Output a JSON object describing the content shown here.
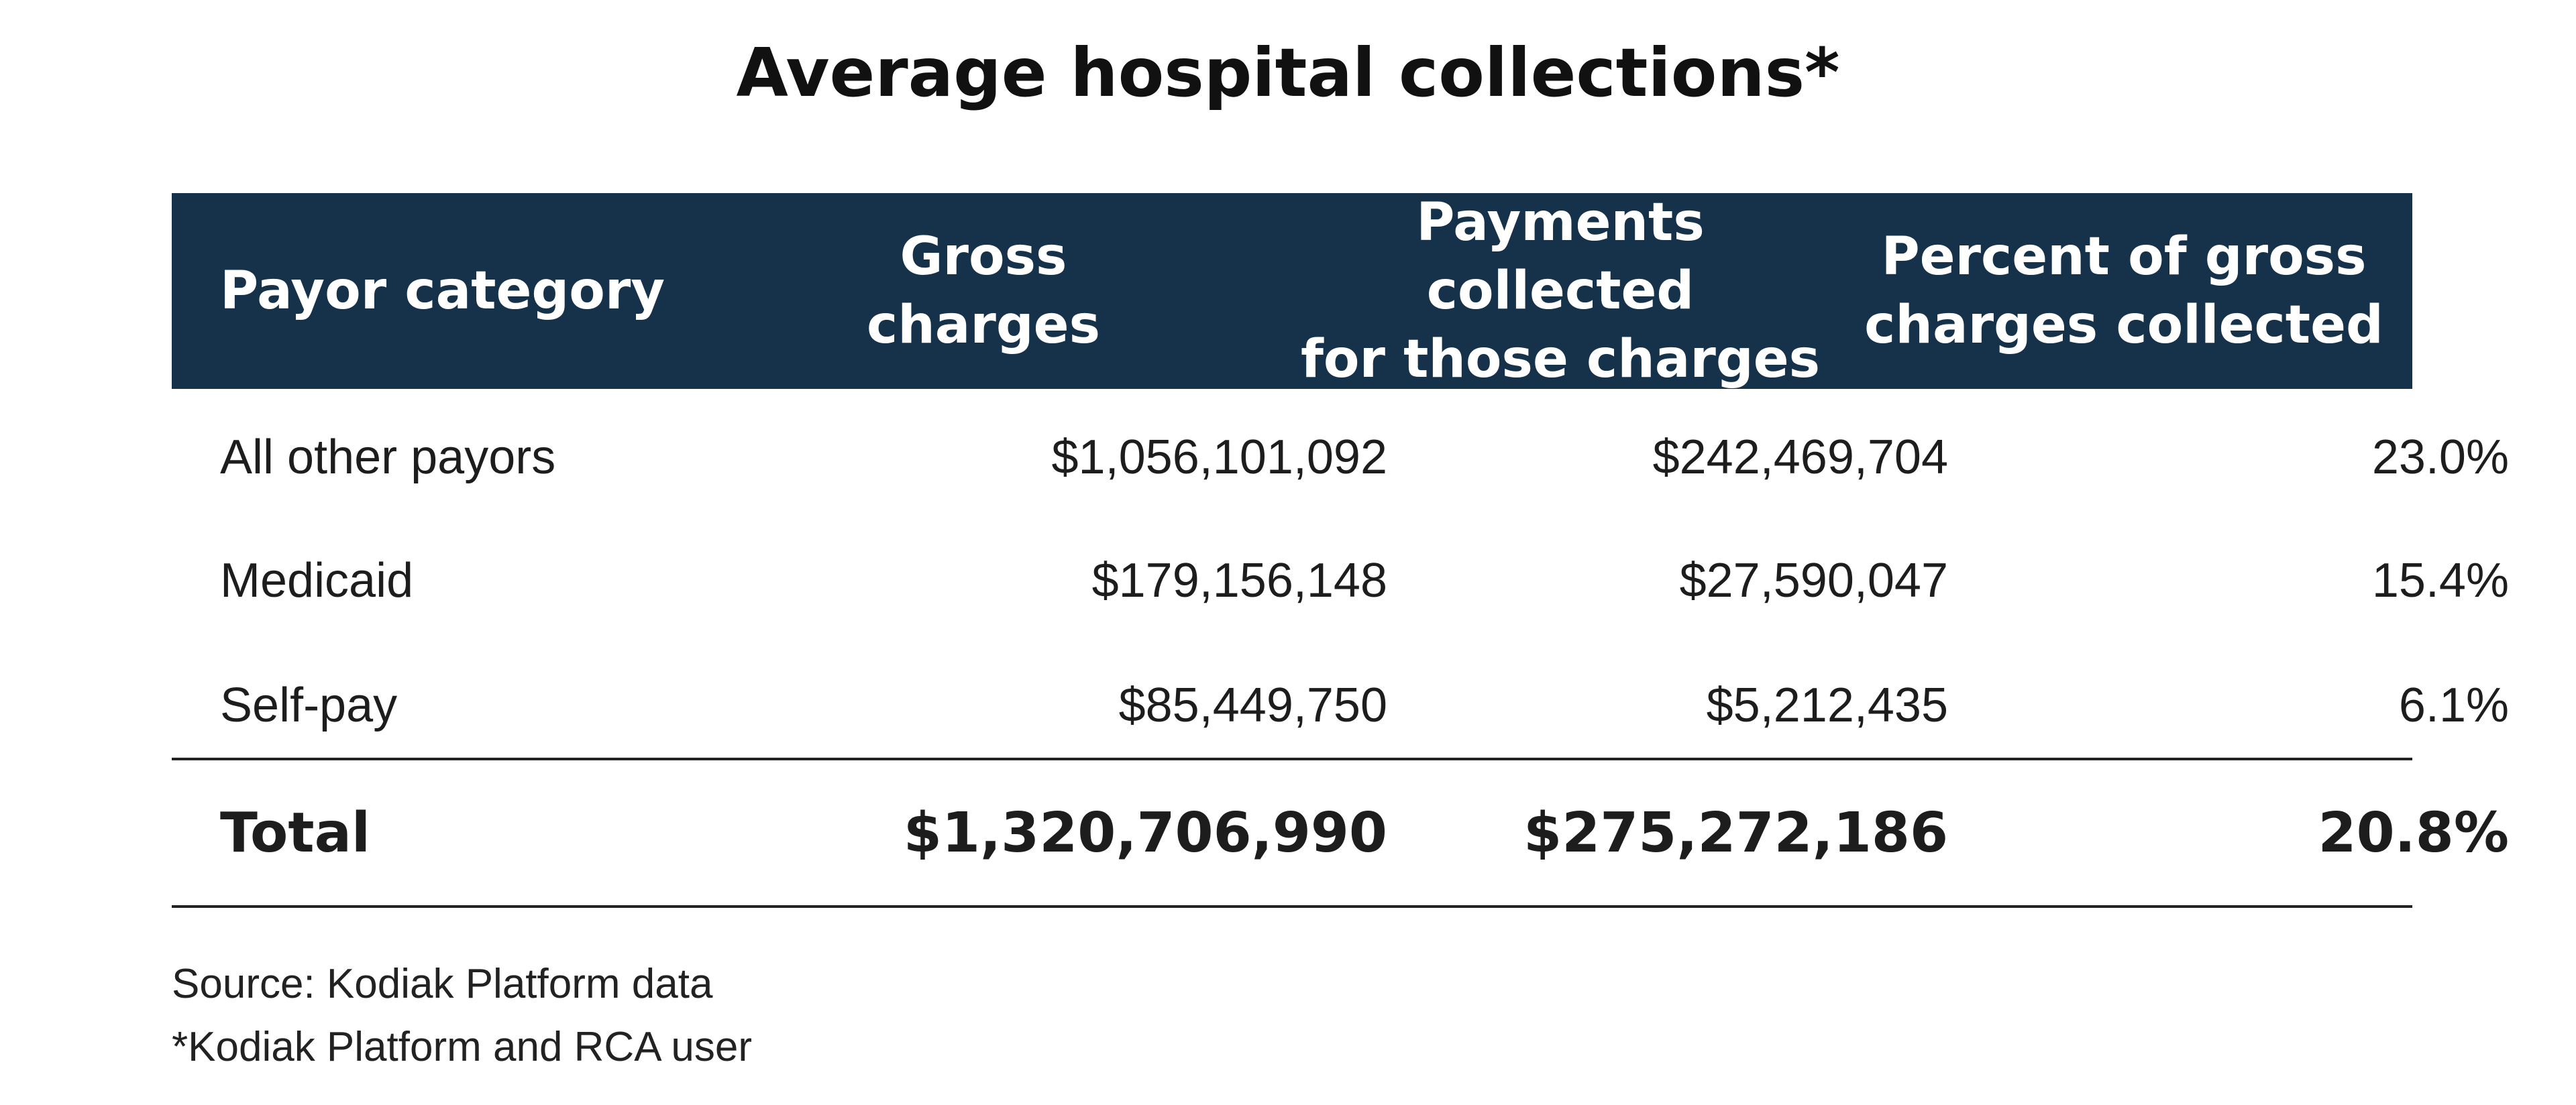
{
  "title": "Average hospital collections*",
  "chart_data": {
    "type": "table",
    "title": "Average hospital collections*",
    "columns": [
      [
        "Payor category"
      ],
      [
        "Gross",
        "charges"
      ],
      [
        "Payments collected",
        "for those charges"
      ],
      [
        "Percent of gross",
        "charges collected"
      ]
    ],
    "rows": [
      [
        "All other payors",
        "$1,056,101,092",
        "$242,469,704",
        "23.0%"
      ],
      [
        "Medicaid",
        "$179,156,148",
        "$27,590,047",
        "15.4%"
      ],
      [
        "Self-pay",
        "$85,449,750",
        "$5,212,435",
        "6.1%"
      ]
    ],
    "total": [
      "Total",
      "$1,320,706,990",
      "$275,272,186",
      "20.8%"
    ]
  },
  "footer": {
    "source": "Source: Kodiak Platform data",
    "note": "*Kodiak Platform and RCA user"
  },
  "colors": {
    "header_bg": "#16324a",
    "header_text": "#ffffff",
    "divider": "#222222"
  }
}
